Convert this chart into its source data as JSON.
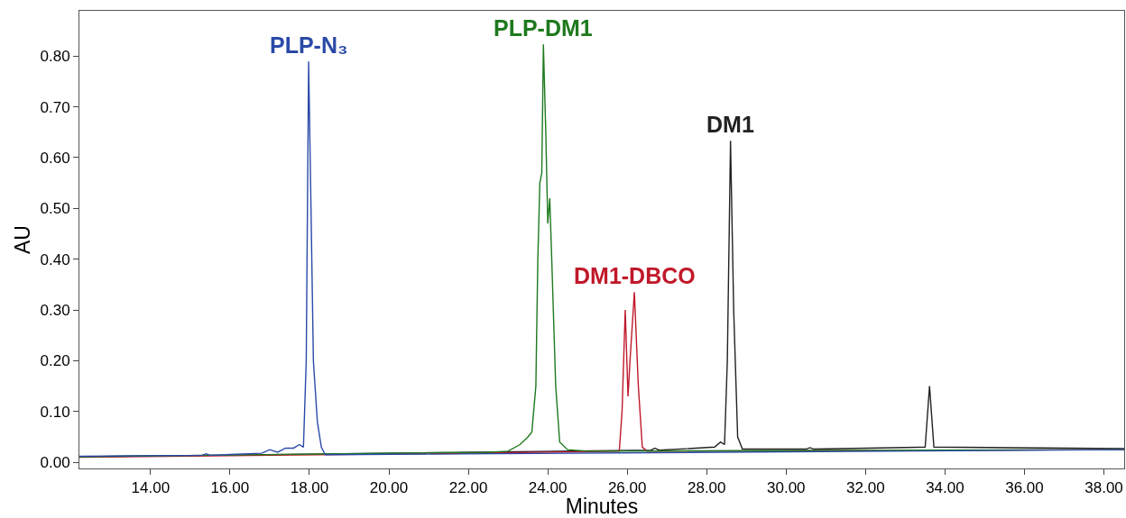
{
  "chart_data": {
    "type": "line",
    "xlabel": "Minutes",
    "ylabel": "AU",
    "xlim": [
      12.21,
      38.51
    ],
    "xticks": [
      {
        "value": 14,
        "label": "14.00"
      },
      {
        "value": 16,
        "label": "16.00"
      },
      {
        "value": 18,
        "label": "18.00"
      },
      {
        "value": 20,
        "label": "20.00"
      },
      {
        "value": 22,
        "label": "22.00"
      },
      {
        "value": 24,
        "label": "24.00"
      },
      {
        "value": 26,
        "label": "26.00"
      },
      {
        "value": 28,
        "label": "28.00"
      },
      {
        "value": 30,
        "label": "30.00"
      },
      {
        "value": 32,
        "label": "32.00"
      },
      {
        "value": 34,
        "label": "34.00"
      },
      {
        "value": 36,
        "label": "36.00"
      },
      {
        "value": 38,
        "label": "38.00"
      }
    ],
    "ylim": [
      -0.012,
      0.889
    ],
    "yticks": [
      {
        "value": 0,
        "label": "0.00"
      },
      {
        "value": 0.1,
        "label": "0.10"
      },
      {
        "value": 0.2,
        "label": "0.20"
      },
      {
        "value": 0.3,
        "label": "0.30"
      },
      {
        "value": 0.4,
        "label": "0.40"
      },
      {
        "value": 0.5,
        "label": "0.50"
      },
      {
        "value": 0.6,
        "label": "0.60"
      },
      {
        "value": 0.7,
        "label": "0.70"
      },
      {
        "value": 0.8,
        "label": "0.80"
      }
    ],
    "marker": "none",
    "line_style": "solid",
    "series": [
      {
        "color": "#2a4aa8",
        "x": [
          12.21,
          15.3,
          15.4,
          15.5,
          16.8,
          17.0,
          17.2,
          17.4,
          17.6,
          17.75,
          17.85,
          17.92,
          17.98,
          18.04,
          18.1,
          18.2,
          18.3,
          18.4,
          38.51
        ],
        "values": [
          0.012,
          0.014,
          0.017,
          0.014,
          0.018,
          0.025,
          0.02,
          0.028,
          0.028,
          0.035,
          0.03,
          0.2,
          0.789,
          0.5,
          0.2,
          0.08,
          0.03,
          0.015,
          0.025
        ]
      },
      {
        "color": "#1e7a1e",
        "x": [
          12.21,
          22.5,
          23.0,
          23.3,
          23.5,
          23.6,
          23.7,
          23.75,
          23.8,
          23.85,
          23.89,
          23.95,
          24.0,
          24.05,
          24.1,
          24.2,
          24.3,
          24.5,
          25.0,
          38.51
        ],
        "values": [
          0.011,
          0.02,
          0.022,
          0.035,
          0.05,
          0.06,
          0.15,
          0.4,
          0.55,
          0.57,
          0.823,
          0.65,
          0.47,
          0.52,
          0.4,
          0.15,
          0.04,
          0.025,
          0.022,
          0.025
        ]
      },
      {
        "color": "#c0192a",
        "x": [
          12.21,
          20.9,
          21.0,
          21.1,
          25.8,
          25.87,
          25.95,
          26.02,
          26.07,
          26.18,
          26.28,
          26.38,
          26.5,
          38.51
        ],
        "values": [
          0.01,
          0.017,
          0.019,
          0.017,
          0.022,
          0.1,
          0.3,
          0.13,
          0.2,
          0.335,
          0.15,
          0.03,
          0.022,
          0.025
        ]
      },
      {
        "color": "#222222",
        "x": [
          12.21,
          26.6,
          26.7,
          26.8,
          28.2,
          28.35,
          28.45,
          28.52,
          28.6,
          28.68,
          28.78,
          28.9,
          30.5,
          30.6,
          30.7,
          33.5,
          33.61,
          33.72,
          38.51
        ],
        "values": [
          0.011,
          0.024,
          0.028,
          0.024,
          0.03,
          0.04,
          0.035,
          0.2,
          0.633,
          0.3,
          0.05,
          0.026,
          0.026,
          0.029,
          0.026,
          0.03,
          0.15,
          0.03,
          0.027
        ]
      }
    ],
    "annotations": [
      {
        "text": "PLP-N₃",
        "x": 17.98,
        "y": 0.789
      },
      {
        "text": "PLP-DM1",
        "x": 23.89,
        "y": 0.823
      },
      {
        "text": "DM1-DBCO",
        "x": 26.18,
        "y": 0.335
      },
      {
        "text": "DM1",
        "x": 28.6,
        "y": 0.633
      }
    ]
  }
}
